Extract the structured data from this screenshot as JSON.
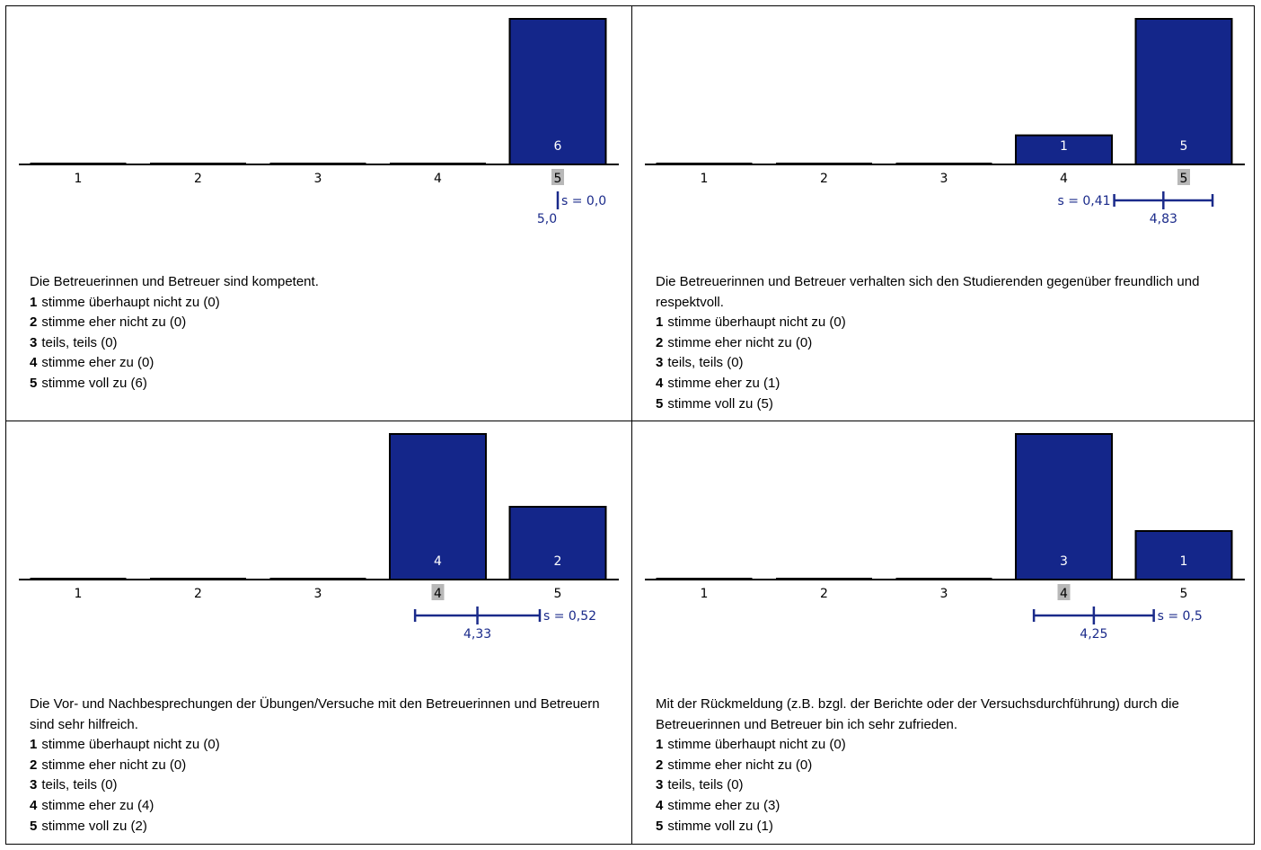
{
  "colors": {
    "bar": "#14268a",
    "stat": "#1a2a8a",
    "highlight": "#b8b8b8"
  },
  "chart_data": [
    {
      "type": "bar",
      "categories": [
        "1",
        "2",
        "3",
        "4",
        "5"
      ],
      "values": [
        0,
        0,
        0,
        0,
        6
      ],
      "data_labels": [
        "",
        "",
        "",
        "",
        "6"
      ],
      "median_category": "5",
      "mean": 5.0,
      "sd": 0.0,
      "mean_label": "5,0",
      "sd_label": "s = 0,0",
      "question": "Die Betreuerinnen und Betreuer sind kompetent.",
      "options": [
        {
          "num": "1",
          "text": "stimme überhaupt nicht zu (0)"
        },
        {
          "num": "2",
          "text": "stimme eher nicht zu (0)"
        },
        {
          "num": "3",
          "text": "teils, teils (0)"
        },
        {
          "num": "4",
          "text": "stimme eher zu (0)"
        },
        {
          "num": "5",
          "text": "stimme voll zu (6)"
        }
      ]
    },
    {
      "type": "bar",
      "categories": [
        "1",
        "2",
        "3",
        "4",
        "5"
      ],
      "values": [
        0,
        0,
        0,
        1,
        5
      ],
      "data_labels": [
        "",
        "",
        "",
        "1",
        "5"
      ],
      "median_category": "5",
      "mean": 4.83,
      "sd": 0.41,
      "mean_label": "4,83",
      "sd_label": "s = 0,41",
      "question": "Die Betreuerinnen und Betreuer verhalten sich den Studierenden gegenüber freundlich und respektvoll.",
      "options": [
        {
          "num": "1",
          "text": "stimme überhaupt nicht zu (0)"
        },
        {
          "num": "2",
          "text": "stimme eher nicht zu (0)"
        },
        {
          "num": "3",
          "text": "teils, teils (0)"
        },
        {
          "num": "4",
          "text": "stimme eher zu (1)"
        },
        {
          "num": "5",
          "text": "stimme voll zu (5)"
        }
      ]
    },
    {
      "type": "bar",
      "categories": [
        "1",
        "2",
        "3",
        "4",
        "5"
      ],
      "values": [
        0,
        0,
        0,
        4,
        2
      ],
      "data_labels": [
        "",
        "",
        "",
        "4",
        "2"
      ],
      "median_category": "4",
      "mean": 4.33,
      "sd": 0.52,
      "mean_label": "4,33",
      "sd_label": "s = 0,52",
      "question": "Die Vor- und Nachbesprechungen der Übungen/Versuche mit den Betreuerinnen und Betreuern sind sehr hilfreich.",
      "options": [
        {
          "num": "1",
          "text": "stimme überhaupt nicht zu (0)"
        },
        {
          "num": "2",
          "text": "stimme eher nicht zu (0)"
        },
        {
          "num": "3",
          "text": "teils, teils (0)"
        },
        {
          "num": "4",
          "text": "stimme eher zu (4)"
        },
        {
          "num": "5",
          "text": "stimme voll zu (2)"
        }
      ]
    },
    {
      "type": "bar",
      "categories": [
        "1",
        "2",
        "3",
        "4",
        "5"
      ],
      "values": [
        0,
        0,
        0,
        3,
        1
      ],
      "data_labels": [
        "",
        "",
        "",
        "3",
        "1"
      ],
      "median_category": "4",
      "mean": 4.25,
      "sd": 0.5,
      "mean_label": "4,25",
      "sd_label": "s = 0,5",
      "question": "Mit der Rückmeldung (z.B. bzgl. der Berichte oder der Versuchsdurchführung) durch die Betreuerinnen und Betreuer bin ich sehr zufrieden.",
      "options": [
        {
          "num": "1",
          "text": "stimme überhaupt nicht zu (0)"
        },
        {
          "num": "2",
          "text": "stimme eher nicht zu (0)"
        },
        {
          "num": "3",
          "text": "teils, teils (0)"
        },
        {
          "num": "4",
          "text": "stimme eher zu (3)"
        },
        {
          "num": "5",
          "text": "stimme voll zu (1)"
        }
      ]
    }
  ]
}
